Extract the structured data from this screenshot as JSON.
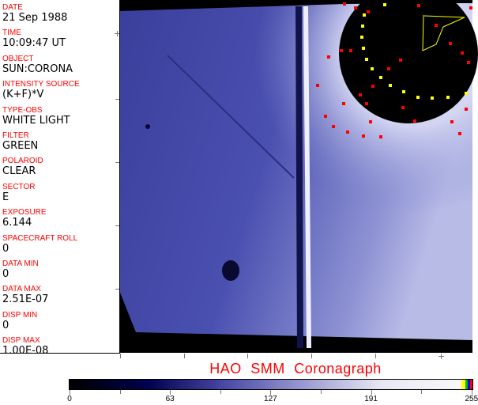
{
  "fields": [
    {
      "label": "DATE",
      "value": "21 Sep 1988"
    },
    {
      "label": "TIME",
      "value": "10:09:47 UT"
    },
    {
      "label": "OBJECT",
      "value": "SUN:CORONA"
    },
    {
      "label": "INTENSITY SOURCE",
      "value": "(K+F)*V"
    },
    {
      "label": "TYPE-OBS",
      "value": "WHITE LIGHT"
    },
    {
      "label": "FILTER",
      "value": "GREEN"
    },
    {
      "label": "POLAROID",
      "value": "CLEAR"
    },
    {
      "label": "SECTOR",
      "value": "E"
    },
    {
      "label": "EXPOSURE",
      "value": "6.144"
    },
    {
      "label": "SPACECRAFT ROLL",
      "value": "0"
    },
    {
      "label": "DATA MIN",
      "value": "0"
    },
    {
      "label": "DATA MAX",
      "value": "2.51E-07"
    },
    {
      "label": "DISP MIN",
      "value": "0"
    },
    {
      "label": "DISP MAX",
      "value": "1.00E-08"
    }
  ],
  "title": "HAO  SMM Coronagraph",
  "colorbar": {
    "min": 0,
    "max": 255,
    "tick_labels": [
      "0",
      "63",
      "127",
      "191",
      "255"
    ],
    "colors": [
      "#000000",
      "#000050",
      "#4a4aa8",
      "#9a9ad2",
      "#e8e8f4",
      "#f8f8f8"
    ],
    "end_colors": [
      "#ffff00",
      "#00c000",
      "#0000ff",
      "#ff0000"
    ]
  },
  "colors": {
    "label": "#ff0000",
    "image_blue": "#4a4fb0",
    "overlay_yellow": "#ffff00",
    "overlay_red": "#ff0000"
  }
}
